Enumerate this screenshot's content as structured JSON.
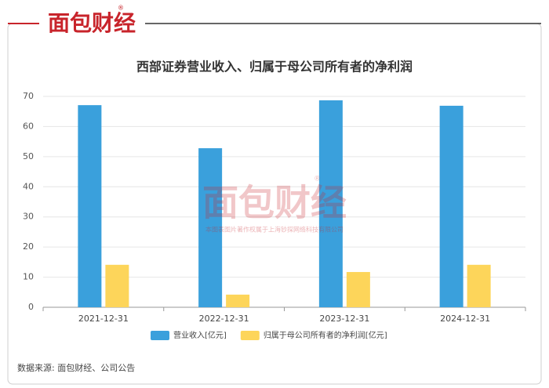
{
  "brand": {
    "name": "面包财经",
    "mark": "®"
  },
  "watermark": {
    "name": "面包财经",
    "note": "本图表图片著作权属于上海钞探网络科技有限公司"
  },
  "source": "数据来源: 面包财经、公司公告",
  "chart_data": {
    "type": "bar",
    "title": "西部证券营业收入、归属于母公司所有者的净利润",
    "categories": [
      "2021-12-31",
      "2022-12-31",
      "2023-12-31",
      "2024-12-31"
    ],
    "series": [
      {
        "name": "营业收入[亿元]",
        "color": "#3aa0dc",
        "values": [
          67.1,
          52.8,
          68.7,
          66.9
        ]
      },
      {
        "name": "归属于母公司所有者的净利润[亿元]",
        "color": "#fdd55a",
        "values": [
          14.1,
          4.2,
          11.7,
          14.1
        ]
      }
    ],
    "ylim": [
      0,
      70
    ],
    "yticks": [
      0,
      10,
      20,
      30,
      40,
      50,
      60,
      70
    ],
    "grid": true,
    "legend": "bottom"
  }
}
